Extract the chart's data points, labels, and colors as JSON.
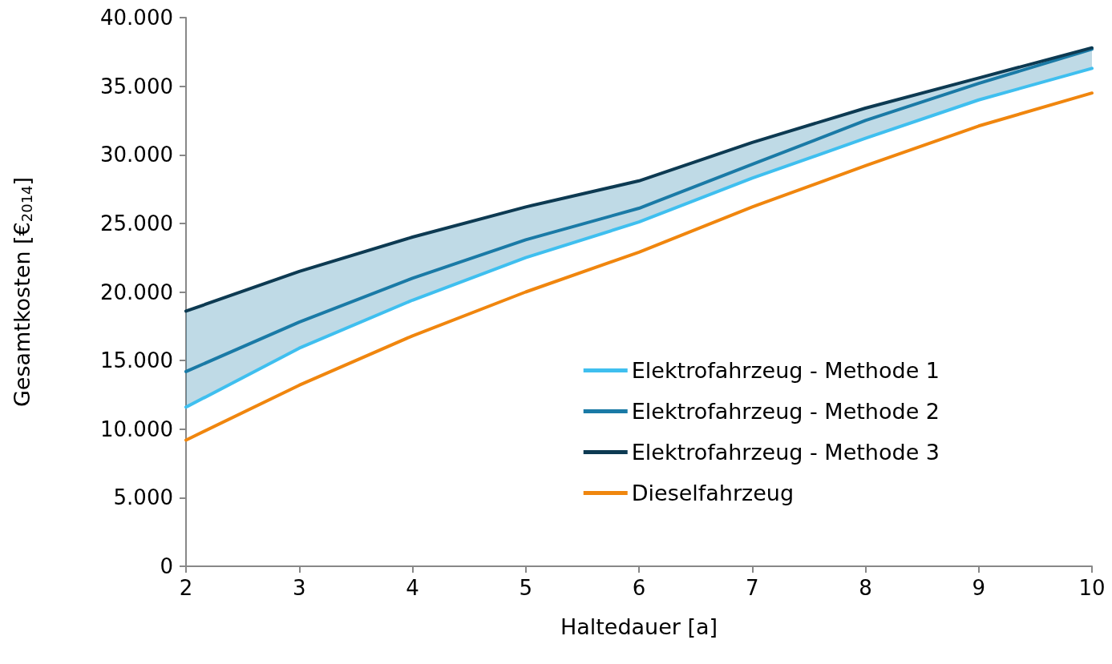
{
  "chart_data": {
    "type": "line",
    "xlabel": "Haltedauer [a]",
    "ylabel": "Gesamtkosten [€$_{2014}$]",
    "x": [
      2,
      3,
      4,
      5,
      6,
      7,
      8,
      9,
      10
    ],
    "xlim": [
      2,
      10
    ],
    "xticks": [
      2,
      3,
      4,
      5,
      6,
      7,
      8,
      9,
      10
    ],
    "ylim": [
      0,
      40000
    ],
    "yticks": [
      0,
      {
        "value": 5000,
        "label": "5.000"
      },
      {
        "value": 10000,
        "label": "10.000"
      },
      {
        "value": 15000,
        "label": "15.000"
      },
      {
        "value": 20000,
        "label": "20.000"
      },
      {
        "value": 25000,
        "label": "25.000"
      },
      {
        "value": 30000,
        "label": "30.000"
      },
      {
        "value": 35000,
        "label": "35.000"
      },
      {
        "value": 40000,
        "label": "40.000"
      }
    ],
    "grid": false,
    "legend": "bottom right",
    "marker": "none",
    "line_style": "solid",
    "series": [
      {
        "name": "Elektrofahrzeug - Methode 1",
        "color": "#3fbfef",
        "values": [
          11600,
          15900,
          19400,
          22500,
          25100,
          28300,
          31200,
          34000,
          36300
        ]
      },
      {
        "name": "Elektrofahrzeug - Methode 2",
        "color": "#1a7aa6",
        "values": [
          14200,
          17800,
          21000,
          23800,
          26100,
          29300,
          32500,
          35200,
          37700
        ],
        "lower": [
          11600,
          15900,
          19400,
          22500,
          25100,
          28300,
          31200,
          34000,
          36300
        ],
        "upper": [
          18600,
          21500,
          24000,
          26200,
          28100,
          30900,
          33400,
          35600,
          37800
        ]
      },
      {
        "name": "Elektrofahrzeug - Methode 3",
        "color": "#0d3a52",
        "values": [
          18600,
          21500,
          24000,
          26200,
          28100,
          30900,
          33400,
          35600,
          37800
        ]
      },
      {
        "name": "Dieselfahrzeug",
        "color": "#f0860e",
        "values": [
          9200,
          13200,
          16800,
          20000,
          22900,
          26200,
          29200,
          32100,
          34500
        ]
      }
    ]
  }
}
